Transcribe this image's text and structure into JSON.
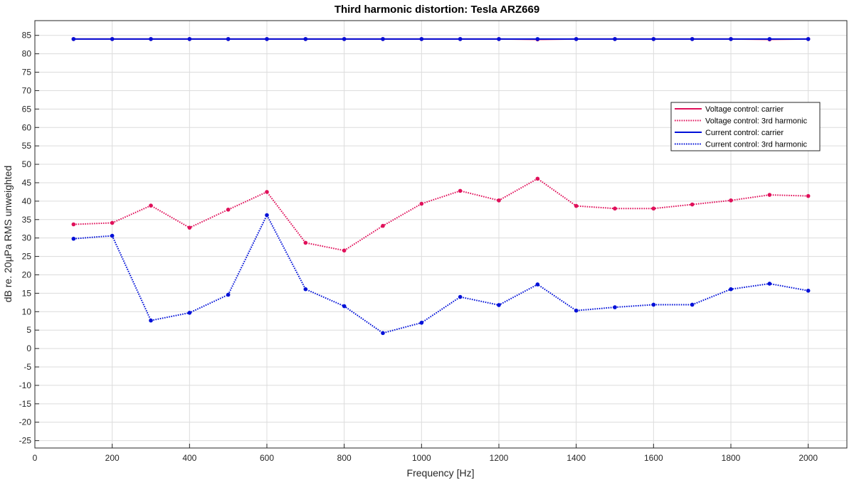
{
  "chart_data": {
    "type": "line",
    "title": "Third harmonic distortion:  Tesla ARZ669",
    "xlabel": "Frequency [Hz]",
    "ylabel": "dB re. 20µPa RMS unweighted",
    "xlim": [
      0,
      2100
    ],
    "ylim": [
      -27,
      89
    ],
    "xticks": [
      0,
      200,
      400,
      600,
      800,
      1000,
      1200,
      1400,
      1600,
      1800,
      2000
    ],
    "yticks": [
      -25,
      -20,
      -15,
      -10,
      -5,
      0,
      5,
      10,
      15,
      20,
      25,
      30,
      35,
      40,
      45,
      50,
      55,
      60,
      65,
      70,
      75,
      80,
      85
    ],
    "grid": true,
    "legend_position": "upper-right",
    "x": [
      100,
      200,
      300,
      400,
      500,
      600,
      700,
      800,
      900,
      1000,
      1100,
      1200,
      1300,
      1400,
      1500,
      1600,
      1700,
      1800,
      1900,
      2000
    ],
    "series": [
      {
        "name": "Voltage control: carrier",
        "color": "#e0105a",
        "style": "solid",
        "values": [
          84,
          84,
          84,
          84,
          84,
          84,
          84,
          84,
          84,
          84,
          84,
          84,
          83.9,
          84,
          84,
          84,
          84,
          84,
          83.9,
          84
        ]
      },
      {
        "name": "Voltage control: 3rd harmonic",
        "color": "#e0105a",
        "style": "dotted",
        "values": [
          33.7,
          34.1,
          38.8,
          32.8,
          37.7,
          42.5,
          28.7,
          26.6,
          33.3,
          39.3,
          42.8,
          40.2,
          46.1,
          38.7,
          38.0,
          38.0,
          39.1,
          40.2,
          41.7,
          41.4
        ]
      },
      {
        "name": "Current control: carrier",
        "color": "#0010d8",
        "style": "solid",
        "values": [
          84,
          84,
          84,
          84,
          84,
          84,
          84,
          84,
          84,
          84,
          84,
          84,
          84,
          84,
          84,
          84,
          84,
          84,
          84,
          84
        ]
      },
      {
        "name": "Current control: 3rd harmonic",
        "color": "#0010d8",
        "style": "dotted",
        "values": [
          29.8,
          30.6,
          7.6,
          9.7,
          14.6,
          36.2,
          16.1,
          11.5,
          4.2,
          7.0,
          14.0,
          11.8,
          17.4,
          10.3,
          11.2,
          11.9,
          11.9,
          16.1,
          17.6,
          15.7
        ]
      }
    ]
  }
}
